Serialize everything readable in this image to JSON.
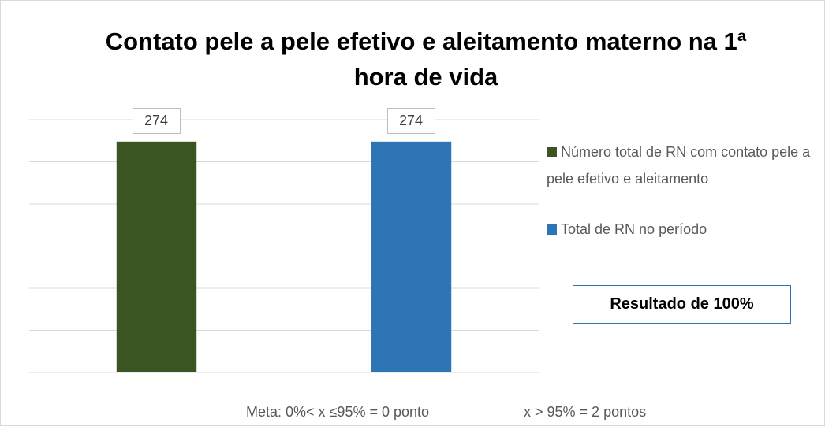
{
  "chart_data": {
    "type": "bar",
    "title": "Contato pele a pele efetivo e aleitamento materno na 1ª hora de vida",
    "categories": [
      null,
      null
    ],
    "series": [
      {
        "name": "Número total de RN com contato pele a pele efetivo e aleitamento",
        "color": "#3a5422",
        "values": [
          274,
          null
        ]
      },
      {
        "name": "Total de RN no período",
        "color": "#2e75b6",
        "values": [
          null,
          274
        ]
      }
    ],
    "ylim": [
      0,
      300
    ],
    "yticks": [
      0,
      50,
      100,
      150,
      200,
      250,
      300
    ],
    "grid": true,
    "legend": "right",
    "annotations": [
      "Resultado de 100%",
      "Meta: 0%< x ≤95% = 0 ponto",
      "x > 95% = 2 pontos"
    ]
  }
}
